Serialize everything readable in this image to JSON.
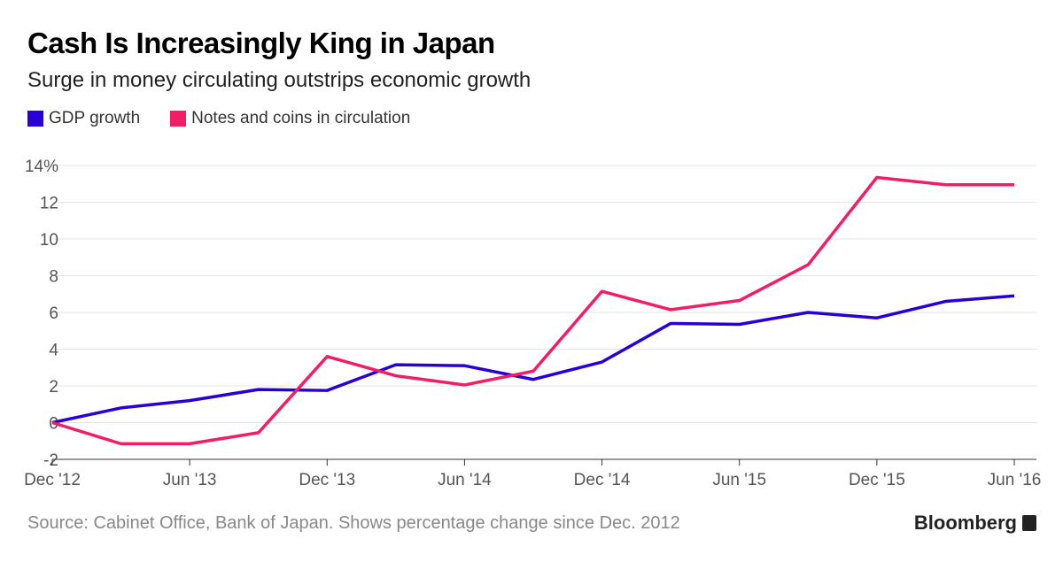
{
  "title": "Cash Is Increasingly King in Japan",
  "subtitle": "Surge in money circulating outstrips economic growth",
  "source": "Source: Cabinet Office, Bank of Japan. Shows percentage change since Dec. 2012",
  "brand": "Bloomberg",
  "chart_data": {
    "type": "line",
    "title": "Cash Is Increasingly King in Japan",
    "xlabel": "",
    "ylabel": "",
    "ylim": [
      -2,
      14
    ],
    "yticks": [
      -2,
      0,
      2,
      4,
      6,
      8,
      10,
      12,
      14
    ],
    "ytick_labels": [
      "-2",
      "0",
      "2",
      "4",
      "6",
      "8",
      "10",
      "12",
      "14%"
    ],
    "xtick_labels": [
      "Dec '12",
      "Jun '13",
      "Dec '13",
      "Jun '14",
      "Dec '14",
      "Jun '15",
      "Dec '15",
      "Jun '16"
    ],
    "x": [
      "Dec 2012",
      "Mar 2013",
      "Jun 2013",
      "Sep 2013",
      "Dec 2013",
      "Mar 2014",
      "Jun 2014",
      "Sep 2014",
      "Dec 2014",
      "Mar 2015",
      "Jun 2015",
      "Sep 2015",
      "Dec 2015",
      "Mar 2016",
      "Jun 2016"
    ],
    "grid": true,
    "legend_placement": "top-left",
    "series": [
      {
        "name": "GDP growth",
        "color": "#2800d7",
        "values": [
          0,
          0.8,
          1.2,
          1.8,
          1.75,
          3.15,
          3.1,
          2.35,
          3.3,
          5.4,
          5.35,
          6.0,
          5.7,
          6.6,
          6.9
        ]
      },
      {
        "name": "Notes and coins in circulation",
        "color": "#f21d64",
        "values": [
          0,
          -1.15,
          -1.15,
          -0.55,
          3.6,
          2.55,
          2.05,
          2.8,
          7.15,
          6.15,
          6.65,
          8.6,
          13.35,
          12.95,
          12.95
        ]
      }
    ]
  }
}
